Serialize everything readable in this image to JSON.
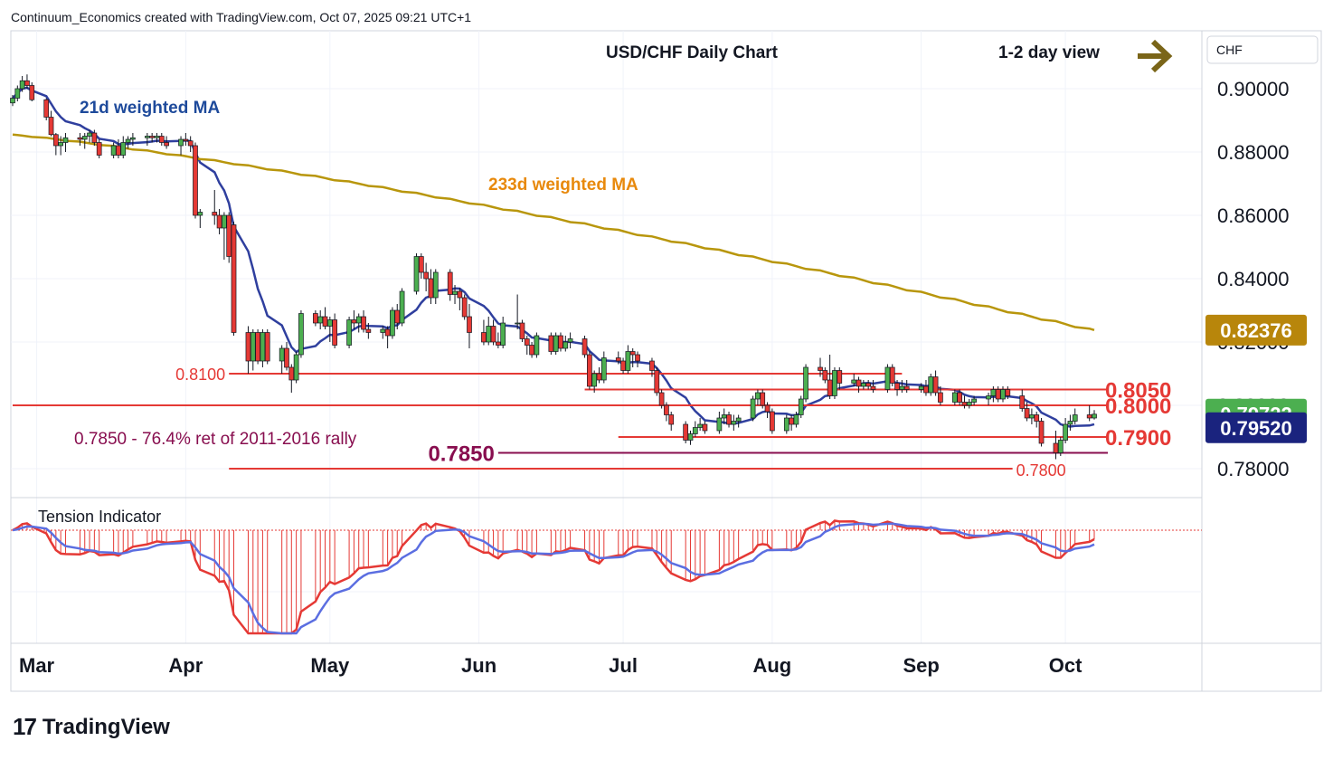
{
  "header": "Continuum_Economics created with TradingView.com, Oct 07, 2025 09:21 UTC+1",
  "brand": "TradingView",
  "chart_data": {
    "type": "candlestick",
    "title": "USD/CHF Daily Chart",
    "view_label": "1-2 day view",
    "currency": "CHF",
    "y_ticks": [
      "0.90000",
      "0.88000",
      "0.86000",
      "0.84000",
      "0.82000",
      "0.80000",
      "0.78000"
    ],
    "y_range": [
      0.7735,
      0.9045
    ],
    "x_labels": [
      {
        "label": "Mar",
        "date": "2025-03-01"
      },
      {
        "label": "Apr",
        "date": "2025-04-01"
      },
      {
        "label": "May",
        "date": "2025-05-01"
      },
      {
        "label": "Jun",
        "date": "2025-06-01"
      },
      {
        "label": "Jul",
        "date": "2025-07-01"
      },
      {
        "label": "Aug",
        "date": "2025-08-01"
      },
      {
        "label": "Sep",
        "date": "2025-09-01"
      },
      {
        "label": "Oct",
        "date": "2025-10-01"
      }
    ],
    "price_badges": [
      {
        "value": "0.82376",
        "color": "#b8860b"
      },
      {
        "value": "0.79722",
        "color": "#4caf50"
      },
      {
        "value": "0.79520",
        "color": "#1a237e"
      }
    ],
    "ma_labels": [
      {
        "text": "21d weighted MA",
        "color": "#1e4a9b"
      },
      {
        "text": "233d weighted MA",
        "color": "#e8890c"
      }
    ],
    "levels": [
      {
        "label": "0.8100",
        "value": 0.81,
        "color": "#e53935",
        "from": "2025-04-10",
        "to": "2025-08-28",
        "label_at": "left"
      },
      {
        "label": "0.8050",
        "value": 0.805,
        "color": "#e53935",
        "from": "2025-06-23",
        "to": "2025-10-10",
        "label_at": "right"
      },
      {
        "label": "0.8000",
        "value": 0.8,
        "color": "#e53935",
        "from": "2025-02-24",
        "to": "2025-10-10",
        "label_at": "right"
      },
      {
        "label": "0.7900",
        "value": 0.79,
        "color": "#e53935",
        "from": "2025-06-30",
        "to": "2025-10-10",
        "label_at": "right"
      },
      {
        "label": "0.7850",
        "value": 0.785,
        "color": "#880e4f",
        "from": "2025-06-05",
        "to": "2025-10-10",
        "label_at": "left"
      },
      {
        "label": "0.7800",
        "value": 0.78,
        "color": "#e53935",
        "from": "2025-04-10",
        "to": "2025-09-20",
        "label_at": "right"
      }
    ],
    "annotation": "0.7850 - 76.4% ret of 2011-2016 rally",
    "indicator_title": "Tension Indicator",
    "ohlc": [
      [
        "2025-02-24",
        0.8955,
        0.898,
        0.8945,
        0.897
      ],
      [
        "2025-02-25",
        0.897,
        0.901,
        0.896,
        0.9
      ],
      [
        "2025-02-26",
        0.9,
        0.904,
        0.899,
        0.9025
      ],
      [
        "2025-02-27",
        0.9025,
        0.9045,
        0.9,
        0.901
      ],
      [
        "2025-02-28",
        0.901,
        0.902,
        0.896,
        0.8965
      ],
      [
        "2025-03-03",
        0.8965,
        0.897,
        0.89,
        0.891
      ],
      [
        "2025-03-04",
        0.891,
        0.893,
        0.885,
        0.8855
      ],
      [
        "2025-03-05",
        0.8855,
        0.886,
        0.879,
        0.882
      ],
      [
        "2025-03-06",
        0.882,
        0.885,
        0.879,
        0.883
      ],
      [
        "2025-03-07",
        0.883,
        0.886,
        0.88,
        0.8845
      ],
      [
        "2025-03-10",
        0.8845,
        0.886,
        0.882,
        0.884
      ],
      [
        "2025-03-11",
        0.884,
        0.886,
        0.881,
        0.885
      ],
      [
        "2025-03-12",
        0.885,
        0.887,
        0.883,
        0.886
      ],
      [
        "2025-03-13",
        0.886,
        0.887,
        0.882,
        0.883
      ],
      [
        "2025-03-14",
        0.883,
        0.884,
        0.878,
        0.879
      ],
      [
        "2025-03-17",
        0.879,
        0.883,
        0.878,
        0.882
      ],
      [
        "2025-03-18",
        0.882,
        0.884,
        0.878,
        0.879
      ],
      [
        "2025-03-19",
        0.879,
        0.885,
        0.878,
        0.883
      ],
      [
        "2025-03-20",
        0.883,
        0.885,
        0.881,
        0.884
      ],
      [
        "2025-03-21",
        0.884,
        0.886,
        0.882,
        0.8845
      ],
      [
        "2025-03-24",
        0.8845,
        0.886,
        0.882,
        0.885
      ],
      [
        "2025-03-25",
        0.885,
        0.886,
        0.883,
        0.8845
      ],
      [
        "2025-03-26",
        0.8845,
        0.886,
        0.883,
        0.885
      ],
      [
        "2025-03-27",
        0.885,
        0.886,
        0.882,
        0.883
      ],
      [
        "2025-03-28",
        0.883,
        0.885,
        0.881,
        0.882
      ],
      [
        "2025-03-31",
        0.882,
        0.885,
        0.879,
        0.884
      ],
      [
        "2025-04-01",
        0.884,
        0.886,
        0.882,
        0.8835
      ],
      [
        "2025-04-02",
        0.8835,
        0.885,
        0.88,
        0.882
      ],
      [
        "2025-04-03",
        0.882,
        0.883,
        0.859,
        0.86
      ],
      [
        "2025-04-04",
        0.86,
        0.862,
        0.856,
        0.861
      ],
      [
        "2025-04-07",
        0.861,
        0.868,
        0.857,
        0.86
      ],
      [
        "2025-04-08",
        0.86,
        0.862,
        0.854,
        0.856
      ],
      [
        "2025-04-09",
        0.856,
        0.861,
        0.846,
        0.86
      ],
      [
        "2025-04-10",
        0.86,
        0.861,
        0.845,
        0.847
      ],
      [
        "2025-04-11",
        0.857,
        0.858,
        0.822,
        0.823
      ],
      [
        "2025-04-14",
        0.823,
        0.825,
        0.81,
        0.814
      ],
      [
        "2025-04-15",
        0.814,
        0.824,
        0.811,
        0.823
      ],
      [
        "2025-04-16",
        0.823,
        0.824,
        0.813,
        0.814
      ],
      [
        "2025-04-17",
        0.814,
        0.824,
        0.812,
        0.823
      ],
      [
        "2025-04-18",
        0.823,
        0.824,
        0.813,
        0.814
      ],
      [
        "2025-04-21",
        0.814,
        0.819,
        0.81,
        0.818
      ],
      [
        "2025-04-22",
        0.818,
        0.82,
        0.811,
        0.812
      ],
      [
        "2025-04-23",
        0.812,
        0.813,
        0.804,
        0.808
      ],
      [
        "2025-04-24",
        0.808,
        0.817,
        0.807,
        0.816
      ],
      [
        "2025-04-25",
        0.816,
        0.83,
        0.815,
        0.829
      ],
      [
        "2025-04-28",
        0.829,
        0.83,
        0.825,
        0.826
      ],
      [
        "2025-04-29",
        0.826,
        0.83,
        0.824,
        0.828
      ],
      [
        "2025-04-30",
        0.828,
        0.831,
        0.824,
        0.825
      ],
      [
        "2025-05-01",
        0.825,
        0.828,
        0.82,
        0.827
      ],
      [
        "2025-05-02",
        0.827,
        0.829,
        0.818,
        0.819
      ],
      [
        "2025-05-05",
        0.819,
        0.828,
        0.818,
        0.827
      ],
      [
        "2025-05-06",
        0.827,
        0.83,
        0.824,
        0.826
      ],
      [
        "2025-05-07",
        0.826,
        0.829,
        0.823,
        0.828
      ],
      [
        "2025-05-08",
        0.828,
        0.83,
        0.823,
        0.824
      ],
      [
        "2025-05-09",
        0.824,
        0.826,
        0.821,
        0.823
      ],
      [
        "2025-05-12",
        0.823,
        0.825,
        0.821,
        0.824
      ],
      [
        "2025-05-13",
        0.824,
        0.825,
        0.818,
        0.822
      ],
      [
        "2025-05-14",
        0.822,
        0.831,
        0.821,
        0.83
      ],
      [
        "2025-05-15",
        0.83,
        0.832,
        0.824,
        0.826
      ],
      [
        "2025-05-16",
        0.826,
        0.837,
        0.825,
        0.836
      ],
      [
        "2025-05-19",
        0.836,
        0.848,
        0.835,
        0.847
      ],
      [
        "2025-05-20",
        0.847,
        0.848,
        0.84,
        0.842
      ],
      [
        "2025-05-21",
        0.842,
        0.845,
        0.836,
        0.84
      ],
      [
        "2025-05-22",
        0.84,
        0.843,
        0.832,
        0.834
      ],
      [
        "2025-05-23",
        0.834,
        0.843,
        0.832,
        0.842
      ],
      [
        "2025-05-26",
        0.842,
        0.843,
        0.833,
        0.835
      ],
      [
        "2025-05-27",
        0.835,
        0.838,
        0.832,
        0.836
      ],
      [
        "2025-05-28",
        0.836,
        0.837,
        0.83,
        0.834
      ],
      [
        "2025-05-29",
        0.834,
        0.835,
        0.827,
        0.828
      ],
      [
        "2025-05-30",
        0.828,
        0.832,
        0.818,
        0.823
      ],
      [
        "2025-06-02",
        0.823,
        0.827,
        0.819,
        0.82
      ],
      [
        "2025-06-03",
        0.82,
        0.828,
        0.819,
        0.825
      ],
      [
        "2025-06-04",
        0.825,
        0.827,
        0.819,
        0.82
      ],
      [
        "2025-06-05",
        0.82,
        0.823,
        0.818,
        0.819
      ],
      [
        "2025-06-06",
        0.819,
        0.828,
        0.818,
        0.826
      ],
      [
        "2025-06-09",
        0.826,
        0.835,
        0.824,
        0.826
      ],
      [
        "2025-06-10",
        0.826,
        0.827,
        0.82,
        0.821
      ],
      [
        "2025-06-11",
        0.821,
        0.822,
        0.816,
        0.819
      ],
      [
        "2025-06-12",
        0.819,
        0.82,
        0.815,
        0.816
      ],
      [
        "2025-06-13",
        0.816,
        0.823,
        0.815,
        0.822
      ],
      [
        "2025-06-16",
        0.822,
        0.823,
        0.816,
        0.817
      ],
      [
        "2025-06-17",
        0.817,
        0.823,
        0.816,
        0.822
      ],
      [
        "2025-06-18",
        0.822,
        0.823,
        0.817,
        0.818
      ],
      [
        "2025-06-19",
        0.818,
        0.822,
        0.817,
        0.82
      ],
      [
        "2025-06-20",
        0.82,
        0.823,
        0.818,
        0.821
      ],
      [
        "2025-06-23",
        0.821,
        0.822,
        0.815,
        0.816
      ],
      [
        "2025-06-24",
        0.816,
        0.817,
        0.805,
        0.806
      ],
      [
        "2025-06-25",
        0.806,
        0.811,
        0.804,
        0.81
      ],
      [
        "2025-06-26",
        0.81,
        0.812,
        0.807,
        0.808
      ],
      [
        "2025-06-27",
        0.808,
        0.817,
        0.807,
        0.815
      ],
      [
        "2025-06-30",
        0.815,
        0.817,
        0.813,
        0.814
      ],
      [
        "2025-07-01",
        0.814,
        0.815,
        0.81,
        0.811
      ],
      [
        "2025-07-02",
        0.811,
        0.819,
        0.81,
        0.817
      ],
      [
        "2025-07-03",
        0.817,
        0.818,
        0.812,
        0.816
      ],
      [
        "2025-07-04",
        0.816,
        0.817,
        0.812,
        0.814
      ],
      [
        "2025-07-07",
        0.814,
        0.815,
        0.809,
        0.811
      ],
      [
        "2025-07-08",
        0.811,
        0.812,
        0.803,
        0.804
      ],
      [
        "2025-07-09",
        0.804,
        0.805,
        0.799,
        0.8
      ],
      [
        "2025-07-10",
        0.8,
        0.801,
        0.795,
        0.797
      ],
      [
        "2025-07-11",
        0.797,
        0.798,
        0.792,
        0.794
      ],
      [
        "2025-07-14",
        0.794,
        0.795,
        0.788,
        0.789
      ],
      [
        "2025-07-15",
        0.789,
        0.792,
        0.7875,
        0.791
      ],
      [
        "2025-07-16",
        0.791,
        0.795,
        0.79,
        0.793
      ],
      [
        "2025-07-17",
        0.793,
        0.796,
        0.792,
        0.794
      ],
      [
        "2025-07-18",
        0.794,
        0.795,
        0.791,
        0.792
      ],
      [
        "2025-07-21",
        0.792,
        0.798,
        0.791,
        0.796
      ],
      [
        "2025-07-22",
        0.796,
        0.799,
        0.794,
        0.797
      ],
      [
        "2025-07-23",
        0.797,
        0.798,
        0.793,
        0.794
      ],
      [
        "2025-07-24",
        0.794,
        0.797,
        0.792,
        0.795
      ],
      [
        "2025-07-25",
        0.795,
        0.797,
        0.793,
        0.796
      ],
      [
        "2025-07-28",
        0.796,
        0.803,
        0.795,
        0.802
      ],
      [
        "2025-07-29",
        0.802,
        0.805,
        0.8,
        0.804
      ],
      [
        "2025-07-30",
        0.804,
        0.805,
        0.799,
        0.8
      ],
      [
        "2025-07-31",
        0.8,
        0.801,
        0.796,
        0.798
      ],
      [
        "2025-08-01",
        0.798,
        0.799,
        0.791,
        0.792
      ],
      [
        "2025-08-04",
        0.792,
        0.797,
        0.791,
        0.796
      ],
      [
        "2025-08-05",
        0.796,
        0.797,
        0.792,
        0.794
      ],
      [
        "2025-08-06",
        0.794,
        0.798,
        0.793,
        0.797
      ],
      [
        "2025-08-07",
        0.797,
        0.803,
        0.796,
        0.802
      ],
      [
        "2025-08-08",
        0.802,
        0.813,
        0.801,
        0.812
      ],
      [
        "2025-08-11",
        0.812,
        0.815,
        0.809,
        0.811
      ],
      [
        "2025-08-12",
        0.811,
        0.812,
        0.807,
        0.808
      ],
      [
        "2025-08-13",
        0.808,
        0.816,
        0.802,
        0.803
      ],
      [
        "2025-08-14",
        0.803,
        0.812,
        0.802,
        0.811
      ],
      [
        "2025-08-15",
        0.811,
        0.812,
        0.805,
        0.807
      ],
      [
        "2025-08-18",
        0.807,
        0.81,
        0.806,
        0.808
      ],
      [
        "2025-08-19",
        0.808,
        0.809,
        0.804,
        0.806
      ],
      [
        "2025-08-20",
        0.806,
        0.808,
        0.805,
        0.807
      ],
      [
        "2025-08-21",
        0.807,
        0.808,
        0.805,
        0.806
      ],
      [
        "2025-08-22",
        0.806,
        0.808,
        0.804,
        0.805
      ],
      [
        "2025-08-25",
        0.805,
        0.813,
        0.804,
        0.812
      ],
      [
        "2025-08-26",
        0.812,
        0.813,
        0.806,
        0.807
      ],
      [
        "2025-08-27",
        0.807,
        0.808,
        0.803,
        0.805
      ],
      [
        "2025-08-28",
        0.805,
        0.808,
        0.804,
        0.806
      ],
      [
        "2025-08-29",
        0.806,
        0.808,
        0.804,
        0.805
      ],
      [
        "2025-09-01",
        0.805,
        0.807,
        0.804,
        0.806
      ],
      [
        "2025-09-02",
        0.806,
        0.808,
        0.803,
        0.804
      ],
      [
        "2025-09-03",
        0.804,
        0.81,
        0.803,
        0.809
      ],
      [
        "2025-09-04",
        0.809,
        0.811,
        0.803,
        0.804
      ],
      [
        "2025-09-05",
        0.804,
        0.806,
        0.8,
        0.801
      ],
      [
        "2025-09-08",
        0.801,
        0.805,
        0.8,
        0.804
      ],
      [
        "2025-09-09",
        0.804,
        0.805,
        0.8,
        0.801
      ],
      [
        "2025-09-10",
        0.801,
        0.803,
        0.799,
        0.8
      ],
      [
        "2025-09-11",
        0.8,
        0.802,
        0.799,
        0.801
      ],
      [
        "2025-09-12",
        0.801,
        0.803,
        0.8,
        0.802
      ],
      [
        "2025-09-15",
        0.802,
        0.804,
        0.8,
        0.803
      ],
      [
        "2025-09-16",
        0.803,
        0.806,
        0.801,
        0.805
      ],
      [
        "2025-09-17",
        0.805,
        0.806,
        0.801,
        0.802
      ],
      [
        "2025-09-18",
        0.802,
        0.806,
        0.801,
        0.805
      ],
      [
        "2025-09-19",
        0.805,
        0.806,
        0.802,
        0.803
      ],
      [
        "2025-09-22",
        0.803,
        0.805,
        0.798,
        0.799
      ],
      [
        "2025-09-23",
        0.799,
        0.801,
        0.795,
        0.796
      ],
      [
        "2025-09-24",
        0.796,
        0.799,
        0.794,
        0.797
      ],
      [
        "2025-09-25",
        0.797,
        0.798,
        0.793,
        0.795
      ],
      [
        "2025-09-26",
        0.795,
        0.796,
        0.787,
        0.788
      ],
      [
        "2025-09-29",
        0.788,
        0.792,
        0.783,
        0.785
      ],
      [
        "2025-09-30",
        0.785,
        0.79,
        0.784,
        0.789
      ],
      [
        "2025-10-01",
        0.789,
        0.796,
        0.788,
        0.794
      ],
      [
        "2025-10-02",
        0.794,
        0.797,
        0.792,
        0.795
      ],
      [
        "2025-10-03",
        0.795,
        0.799,
        0.794,
        0.797
      ],
      [
        "2025-10-06",
        0.797,
        0.8,
        0.795,
        0.796
      ],
      [
        "2025-10-07",
        0.796,
        0.7985,
        0.7955,
        0.7972
      ]
    ]
  }
}
